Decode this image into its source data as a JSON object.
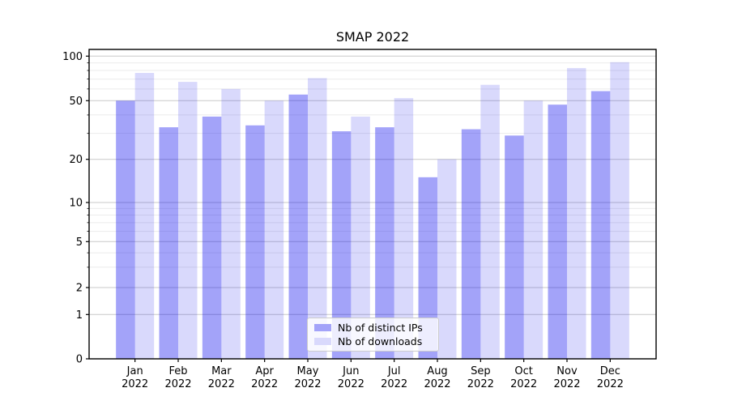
{
  "chart_data": {
    "type": "bar",
    "title": "SMAP 2022",
    "year": "2022",
    "categories": [
      "Jan",
      "Feb",
      "Mar",
      "Apr",
      "May",
      "Jun",
      "Jul",
      "Aug",
      "Sep",
      "Oct",
      "Nov",
      "Dec"
    ],
    "series": [
      {
        "name": "Nb of distinct IPs",
        "color": "rgba(0,0,238,0.36)",
        "legend_color": "#a3a3f9",
        "values": [
          50,
          33,
          39,
          34,
          55,
          31,
          33,
          15,
          32,
          29,
          47,
          58
        ]
      },
      {
        "name": "Nb of downloads",
        "color": "rgba(0,0,238,0.15)",
        "legend_color": "#d9d9fc",
        "values": [
          77,
          67,
          60,
          50,
          71,
          39,
          52,
          20,
          64,
          50,
          83,
          91
        ]
      }
    ],
    "x_axis": {
      "tick_labels_line1": [
        "Jan",
        "Feb",
        "Mar",
        "Apr",
        "May",
        "Jun",
        "Jul",
        "Aug",
        "Sep",
        "Oct",
        "Nov",
        "Dec"
      ],
      "tick_labels_line2": [
        "2022",
        "2022",
        "2022",
        "2022",
        "2022",
        "2022",
        "2022",
        "2022",
        "2022",
        "2022",
        "2022",
        "2022"
      ]
    },
    "y_axis": {
      "scale": "symlog",
      "ylim": [
        0,
        110
      ],
      "major_ticks": [
        0,
        1,
        2,
        5,
        10,
        20,
        50,
        100
      ],
      "major_tick_labels": [
        "0",
        "1",
        "2",
        "5",
        "10",
        "20",
        "50",
        "100"
      ],
      "minor_ticks": [
        3,
        4,
        6,
        7,
        8,
        9,
        30,
        40,
        60,
        70,
        80,
        90
      ]
    },
    "legend": {
      "position": "lower center"
    },
    "grid": {
      "major_color": "#c9c9c9",
      "minor_color": "#ebebeb"
    }
  }
}
